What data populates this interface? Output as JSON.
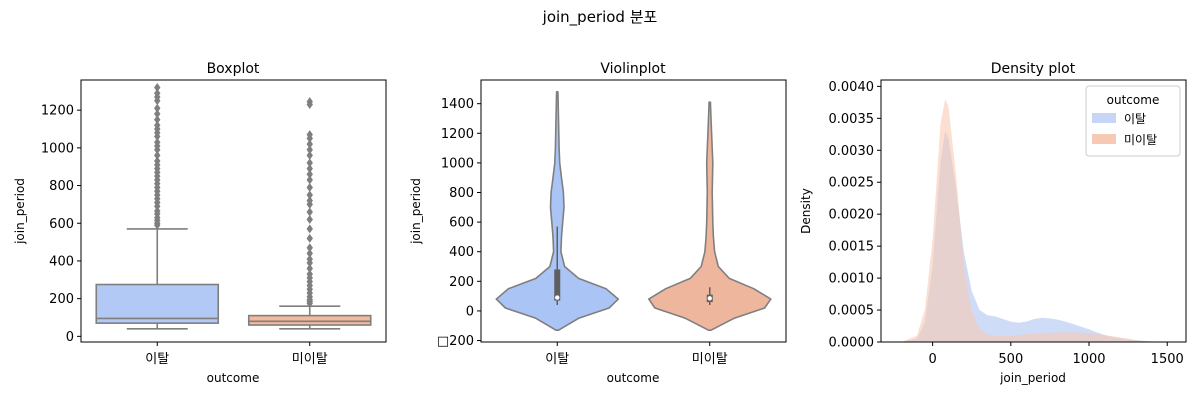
{
  "figure": {
    "suptitle": "join_period 분포"
  },
  "chart_data": [
    {
      "type": "box",
      "title": "Boxplot",
      "xlabel": "outcome",
      "ylabel": "join_period",
      "categories": [
        "이탈",
        "미이탈"
      ],
      "ylim": [
        -30,
        1360
      ],
      "yticks": [
        0,
        200,
        400,
        600,
        800,
        1000,
        1200
      ],
      "colors": [
        "#b2c8f5",
        "#f4b89f"
      ],
      "boxes": [
        {
          "category": "이탈",
          "q1": 70,
          "median": 95,
          "q3": 275,
          "whisker_low": 40,
          "whisker_high": 570,
          "outliers": [
            590,
            600,
            615,
            630,
            650,
            665,
            690,
            710,
            730,
            750,
            770,
            790,
            810,
            830,
            850,
            870,
            890,
            910,
            930,
            960,
            990,
            1010,
            1030,
            1060,
            1080,
            1100,
            1120,
            1150,
            1180,
            1210,
            1250,
            1270,
            1290,
            1320
          ]
        },
        {
          "category": "미이탈",
          "q1": 60,
          "median": 80,
          "q3": 110,
          "whisker_low": 40,
          "whisker_high": 160,
          "outliers": [
            175,
            185,
            195,
            210,
            230,
            250,
            270,
            290,
            310,
            330,
            360,
            390,
            410,
            440,
            470,
            520,
            570,
            620,
            660,
            700,
            720,
            750,
            790,
            830,
            860,
            890,
            920,
            960,
            990,
            1020,
            1050,
            1070,
            1230,
            1245
          ]
        }
      ]
    },
    {
      "type": "violin",
      "title": "Violinplot",
      "xlabel": "outcome",
      "ylabel": "join_period",
      "categories": [
        "이탈",
        "미이탈"
      ],
      "ylim": [
        -210,
        1560
      ],
      "yticks": [
        -200,
        0,
        200,
        400,
        600,
        800,
        1000,
        1200,
        1400
      ],
      "yticklabels": [
        "□200",
        "0",
        "200",
        "400",
        "600",
        "800",
        "1000",
        "1200",
        "1400"
      ],
      "colors": [
        "#a9c4f5",
        "#efb69e"
      ],
      "violins": [
        {
          "category": "이탈",
          "range": [
            -130,
            1480
          ],
          "q1": 70,
          "median": 90,
          "q3": 280,
          "whisker_low": 40,
          "whisker_high": 570,
          "density": [
            [
              -130,
              0.02
            ],
            [
              -50,
              0.35
            ],
            [
              20,
              0.85
            ],
            [
              80,
              1.0
            ],
            [
              150,
              0.8
            ],
            [
              220,
              0.35
            ],
            [
              300,
              0.12
            ],
            [
              400,
              0.06
            ],
            [
              500,
              0.07
            ],
            [
              600,
              0.09
            ],
            [
              700,
              0.11
            ],
            [
              800,
              0.1
            ],
            [
              900,
              0.07
            ],
            [
              1000,
              0.04
            ],
            [
              1100,
              0.03
            ],
            [
              1200,
              0.025
            ],
            [
              1300,
              0.02
            ],
            [
              1480,
              0.01
            ]
          ]
        },
        {
          "category": "미이탈",
          "range": [
            -130,
            1410
          ],
          "q1": 60,
          "median": 85,
          "q3": 110,
          "whisker_low": 40,
          "whisker_high": 160,
          "density": [
            [
              -130,
              0.02
            ],
            [
              -50,
              0.4
            ],
            [
              20,
              0.9
            ],
            [
              80,
              1.0
            ],
            [
              150,
              0.72
            ],
            [
              220,
              0.32
            ],
            [
              300,
              0.14
            ],
            [
              400,
              0.08
            ],
            [
              500,
              0.06
            ],
            [
              600,
              0.05
            ],
            [
              700,
              0.045
            ],
            [
              800,
              0.04
            ],
            [
              900,
              0.045
            ],
            [
              1000,
              0.05
            ],
            [
              1100,
              0.04
            ],
            [
              1200,
              0.03
            ],
            [
              1300,
              0.02
            ],
            [
              1410,
              0.01
            ]
          ]
        }
      ]
    },
    {
      "type": "area",
      "title": "Density plot",
      "xlabel": "join_period",
      "ylabel": "Density",
      "xlim": [
        -330,
        1620
      ],
      "ylim": [
        0,
        0.0041
      ],
      "xticks": [
        0,
        500,
        1000,
        1500
      ],
      "yticks": [
        0,
        0.0005,
        0.001,
        0.0015,
        0.002,
        0.0025,
        0.003,
        0.0035,
        0.004
      ],
      "ytick_labels": [
        "0.0000",
        "0.0005",
        "0.0010",
        "0.0015",
        "0.0020",
        "0.0025",
        "0.0030",
        "0.0035",
        "0.0040"
      ],
      "legend": {
        "title": "outcome",
        "location": "upper right"
      },
      "series": [
        {
          "name": "이탈",
          "color": "#c6d6f7",
          "x": [
            -200,
            -100,
            -50,
            0,
            50,
            80,
            100,
            150,
            200,
            250,
            300,
            350,
            400,
            450,
            500,
            550,
            600,
            650,
            700,
            750,
            800,
            850,
            900,
            950,
            1000,
            1050,
            1100,
            1150,
            1200,
            1300,
            1400,
            1450
          ],
          "y": [
            0,
            5e-05,
            0.0003,
            0.0012,
            0.0028,
            0.0033,
            0.0032,
            0.0024,
            0.0014,
            0.0008,
            0.0005,
            0.00042,
            0.0004,
            0.00036,
            0.00032,
            0.0003,
            0.00032,
            0.00036,
            0.00038,
            0.00037,
            0.00035,
            0.00032,
            0.00028,
            0.00024,
            0.0002,
            0.00015,
            0.00011,
            8e-05,
            6e-05,
            3e-05,
            1e-05,
            0
          ]
        },
        {
          "name": "미이탈",
          "color": "#f6c9b4",
          "x": [
            -200,
            -100,
            -50,
            0,
            50,
            80,
            100,
            150,
            200,
            250,
            300,
            350,
            400,
            450,
            500,
            550,
            600,
            700,
            800,
            900,
            1000,
            1100,
            1200,
            1300,
            1400
          ],
          "y": [
            0,
            0.0001,
            0.0005,
            0.0016,
            0.0034,
            0.0038,
            0.0037,
            0.0026,
            0.0012,
            0.0005,
            0.0002,
            0.00012,
            0.0001,
            0.0001,
            0.0001,
            0.00011,
            0.00012,
            0.00014,
            0.00015,
            0.00015,
            0.00014,
            0.00011,
            7e-05,
            3e-05,
            0
          ]
        }
      ]
    }
  ]
}
